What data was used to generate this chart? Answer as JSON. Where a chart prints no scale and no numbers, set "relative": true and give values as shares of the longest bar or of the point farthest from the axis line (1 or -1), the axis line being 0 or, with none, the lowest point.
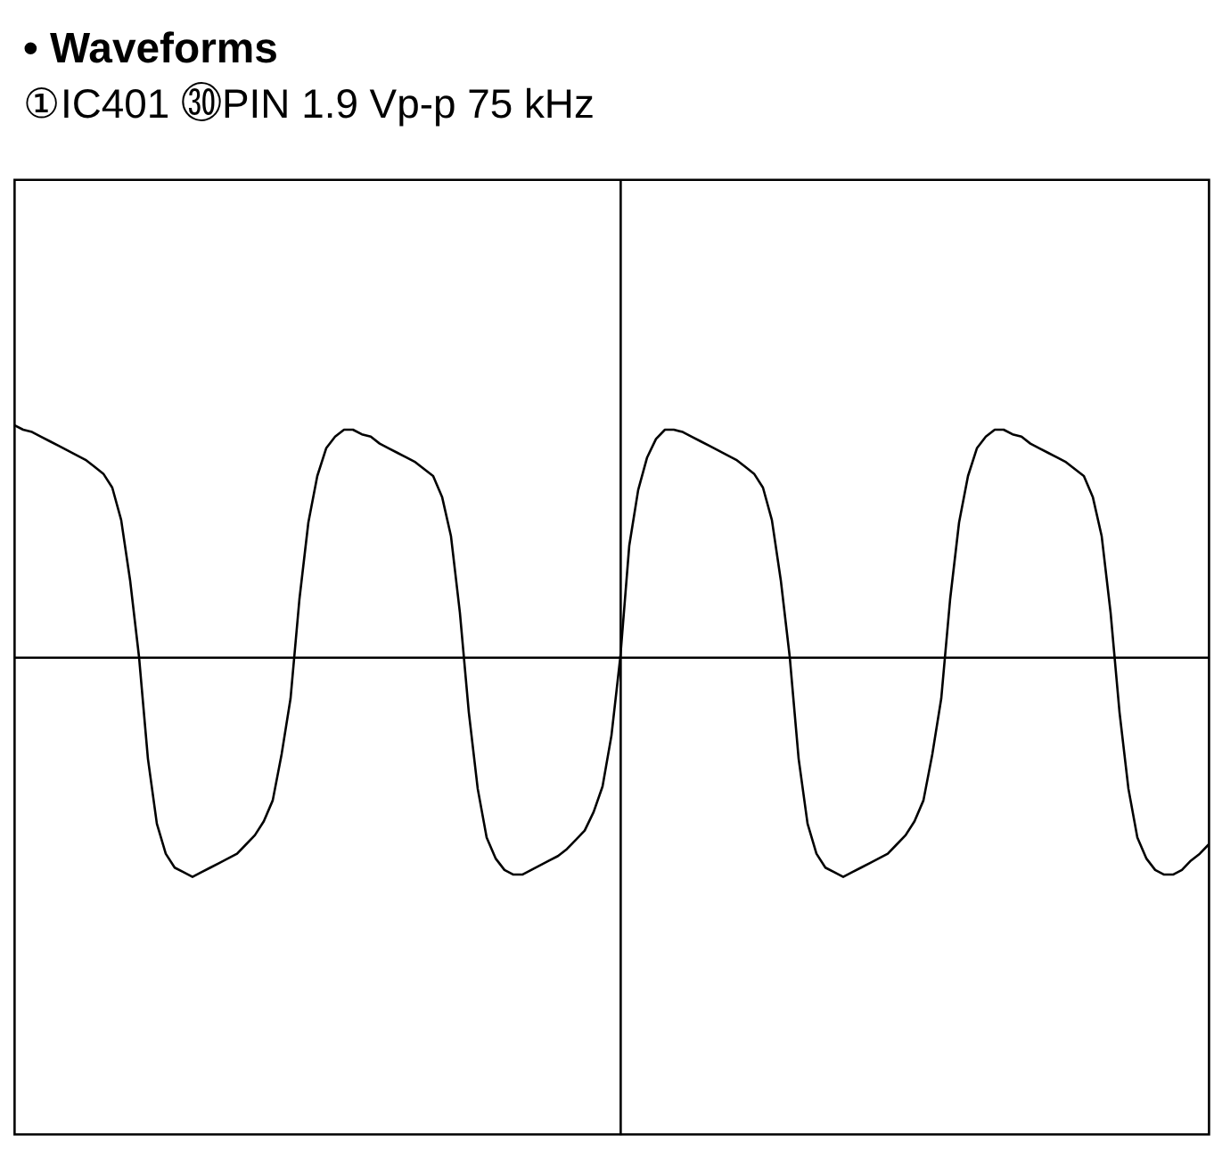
{
  "chart_data": {
    "type": "line",
    "title": "• Waveforms",
    "subtitle": "①IC401 ㉚PIN 1.9 Vp-p 75 kHz",
    "relative": true,
    "color": "#000000",
    "categories": [
      null,
      null,
      null,
      null,
      null,
      null,
      null,
      null,
      null,
      null,
      null,
      null,
      null,
      null,
      null,
      null,
      null,
      null,
      null,
      null,
      null,
      null,
      null,
      null,
      null,
      null,
      null,
      null,
      null,
      null,
      null,
      null,
      null,
      null,
      null,
      null,
      null,
      null,
      null,
      null,
      null,
      null,
      null,
      null,
      null,
      null,
      null,
      null,
      null,
      null,
      null,
      null,
      null,
      null,
      null,
      null,
      null,
      null,
      null,
      null,
      null,
      null,
      null,
      null,
      null,
      null,
      null,
      null,
      null,
      null,
      null,
      null,
      null,
      null,
      null,
      null,
      null,
      null,
      null,
      null,
      null,
      null,
      null,
      null,
      null,
      null,
      null,
      null,
      null,
      null,
      null,
      null,
      null,
      null,
      null,
      null,
      null,
      null,
      null,
      null,
      null,
      null,
      null,
      null,
      null,
      null,
      null,
      null,
      null,
      null,
      null,
      null,
      null,
      null,
      null,
      null,
      null,
      null,
      null,
      null,
      null,
      null,
      null,
      null,
      null,
      null,
      null,
      null,
      null,
      null,
      null,
      null,
      null,
      null,
      null
    ],
    "values": [
      1.0,
      0.98,
      0.97,
      0.95,
      0.93,
      0.91,
      0.89,
      0.87,
      0.85,
      0.82,
      0.79,
      0.73,
      0.59,
      0.33,
      0.0,
      -0.44,
      -0.72,
      -0.85,
      -0.91,
      -0.93,
      -0.95,
      -0.93,
      -0.91,
      -0.89,
      -0.87,
      -0.85,
      -0.81,
      -0.77,
      -0.71,
      -0.62,
      -0.42,
      -0.18,
      0.25,
      0.58,
      0.78,
      0.9,
      0.95,
      0.98,
      0.98,
      0.96,
      0.95,
      0.92,
      0.9,
      0.88,
      0.86,
      0.84,
      0.81,
      0.78,
      0.69,
      0.52,
      0.19,
      -0.24,
      -0.57,
      -0.78,
      -0.87,
      -0.92,
      -0.94,
      -0.94,
      -0.92,
      -0.9,
      -0.88,
      -0.86,
      -0.83,
      -0.79,
      -0.75,
      -0.67,
      -0.56,
      -0.34,
      0.0,
      0.48,
      0.72,
      0.86,
      0.94,
      0.98,
      0.98,
      0.97,
      0.95,
      0.93,
      0.91,
      0.89,
      0.87,
      0.85,
      0.82,
      0.79,
      0.73,
      0.59,
      0.33,
      0.0,
      -0.44,
      -0.72,
      -0.85,
      -0.91,
      -0.93,
      -0.95,
      -0.93,
      -0.91,
      -0.89,
      -0.87,
      -0.85,
      -0.81,
      -0.77,
      -0.71,
      -0.62,
      -0.42,
      -0.18,
      0.25,
      0.58,
      0.78,
      0.9,
      0.95,
      0.98,
      0.98,
      0.96,
      0.95,
      0.92,
      0.9,
      0.88,
      0.86,
      0.84,
      0.81,
      0.78,
      0.69,
      0.52,
      0.19,
      -0.24,
      -0.57,
      -0.78,
      -0.87,
      -0.92,
      -0.94,
      -0.94,
      -0.92,
      -0.88,
      -0.85,
      -0.81
    ]
  }
}
